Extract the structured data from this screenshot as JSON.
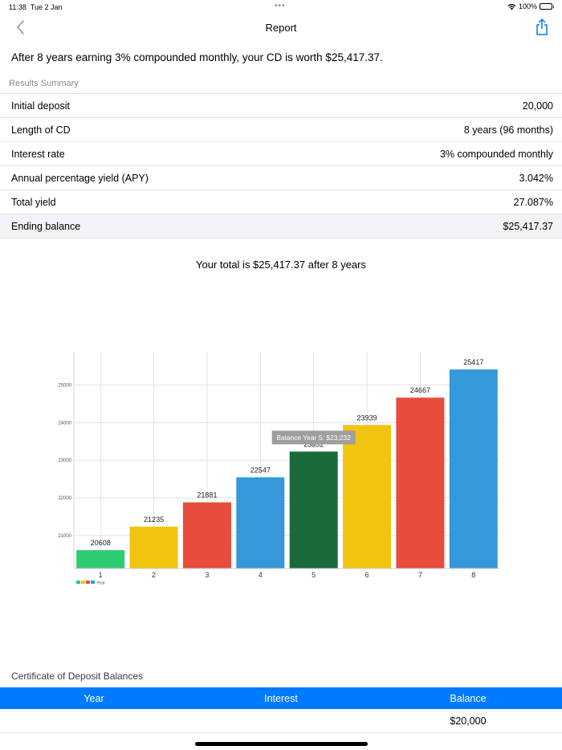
{
  "status_bar": {
    "time": "11:38",
    "date": "Tue 2 Jan",
    "battery_percent": "100%",
    "multitask_dots": "•••"
  },
  "nav": {
    "title": "Report",
    "back_icon": "chevron-left-icon",
    "share_icon": "share-icon"
  },
  "headline": "After 8 years earning 3% compounded monthly, your CD is worth $25,417.37.",
  "summary": {
    "section_label": "Results Summary",
    "rows": [
      {
        "label": "Initial deposit",
        "value": "20,000"
      },
      {
        "label": "Length of CD",
        "value": "8 years (96 months)"
      },
      {
        "label": "Interest rate",
        "value": "3% compounded monthly"
      },
      {
        "label": "Annual percentage yield (APY)",
        "value": "3.042%"
      },
      {
        "label": "Total yield",
        "value": "27.087%"
      },
      {
        "label": "Ending balance",
        "value": "$25,417.37"
      }
    ]
  },
  "total_caption": "Your total is $25,417.37 after 8 years",
  "chart_data": {
    "type": "bar",
    "title": "",
    "xlabel": "",
    "ylabel": "",
    "categories": [
      "1",
      "2",
      "3",
      "4",
      "5",
      "6",
      "7",
      "8"
    ],
    "values": [
      20608,
      21235,
      21881,
      22547,
      23232,
      23939,
      24667,
      25417
    ],
    "data_labels": [
      "20608",
      "21235",
      "21881",
      "22547",
      "23232",
      "23939",
      "24667",
      "25417"
    ],
    "bar_colors": [
      "#2ecc71",
      "#f1c40f",
      "#e74c3c",
      "#3498db",
      "#1a6b3c",
      "#f1c40f",
      "#e74c3c",
      "#3498db"
    ],
    "y_ticks": [
      21000,
      22000,
      23000,
      24000,
      25000
    ],
    "y_tick_labels": [
      "21000",
      "22000",
      "23000",
      "24000",
      "25000"
    ],
    "ylim": [
      20120,
      26000
    ],
    "grid": true,
    "legend": {
      "label": "Year",
      "position": "bottom-left",
      "swatches": [
        "#2ecc71",
        "#f1c40f",
        "#e74c3c",
        "#3498db"
      ]
    },
    "tooltip": {
      "text": "Balance Year 5: $23,232",
      "category": "5"
    }
  },
  "balances": {
    "title": "Certificate of Deposit Balances",
    "header": {
      "year": "Year",
      "interest": "Interest",
      "balance": "Balance"
    },
    "rows": [
      {
        "year": "",
        "interest": "",
        "balance": "$20,000"
      }
    ],
    "header_color": "#007aff"
  }
}
